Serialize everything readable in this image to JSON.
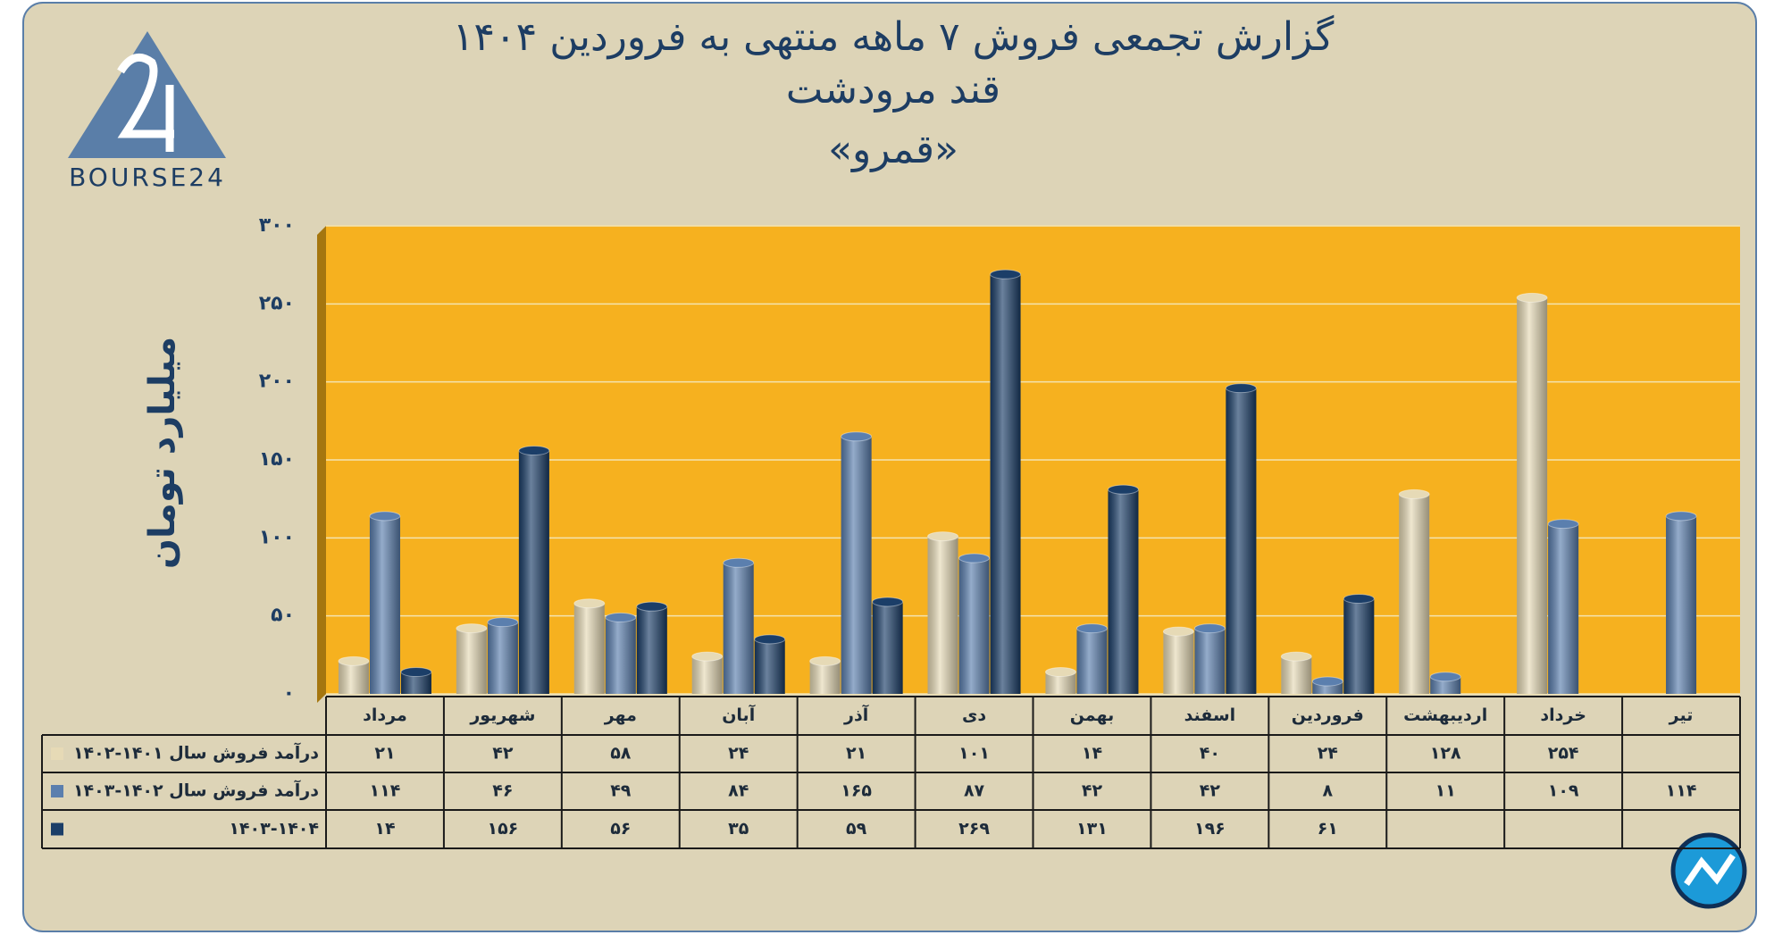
{
  "logo_text": "BOURSE24",
  "chart_data": {
    "type": "bar",
    "title": "گزارش تجمعی فروش ۷ ماهه منتهی به فروردین ۱۴۰۴",
    "subtitle": "قند مرودشت",
    "subtitle2": "«قمرو»",
    "y_label": "میلیارد تومان",
    "categories": [
      "مرداد",
      "شهریور",
      "مهر",
      "آبان",
      "آذر",
      "دی",
      "بهمن",
      "اسفند",
      "فروردین",
      "اردیبهشت",
      "خرداد",
      "تیر"
    ],
    "series": [
      {
        "name": "درآمد فروش سال ۱۴۰۱-۱۴۰۲",
        "color": "#e6dab6",
        "values": [
          21,
          42,
          58,
          24,
          21,
          101,
          14,
          40,
          24,
          128,
          254,
          null
        ],
        "value_labels": [
          "۲۱",
          "۴۲",
          "۵۸",
          "۲۴",
          "۲۱",
          "۱۰۱",
          "۱۴",
          "۴۰",
          "۲۴",
          "۱۲۸",
          "۲۵۴",
          null
        ]
      },
      {
        "name": "درآمد فروش سال ۱۴۰۲-۱۴۰۳",
        "color": "#5b7fae",
        "values": [
          114,
          46,
          49,
          84,
          165,
          87,
          42,
          42,
          8,
          11,
          109,
          114
        ],
        "value_labels": [
          "۱۱۴",
          "۴۶",
          "۴۹",
          "۸۴",
          "۱۶۵",
          "۸۷",
          "۴۲",
          "۴۲",
          "۸",
          "۱۱",
          "۱۰۹",
          "۱۱۴"
        ]
      },
      {
        "name": "۱۴۰۳-۱۴۰۴",
        "color": "#1b3e68",
        "values": [
          14,
          156,
          56,
          35,
          59,
          269,
          131,
          196,
          61,
          null,
          null,
          null
        ],
        "value_labels": [
          "۱۴",
          "۱۵۶",
          "۵۶",
          "۳۵",
          "۵۹",
          "۲۶۹",
          "۱۳۱",
          "۱۹۶",
          "۶۱",
          null,
          null,
          null
        ]
      }
    ],
    "ylim": [
      0,
      300
    ],
    "yticks": [
      {
        "value": 0,
        "label": "۰"
      },
      {
        "value": 50,
        "label": "۵۰"
      },
      {
        "value": 100,
        "label": "۱۰۰"
      },
      {
        "value": 150,
        "label": "۱۵۰"
      },
      {
        "value": 200,
        "label": "۲۰۰"
      },
      {
        "value": 250,
        "label": "۲۵۰"
      },
      {
        "value": 300,
        "label": "۳۰۰"
      }
    ],
    "grid": true
  }
}
